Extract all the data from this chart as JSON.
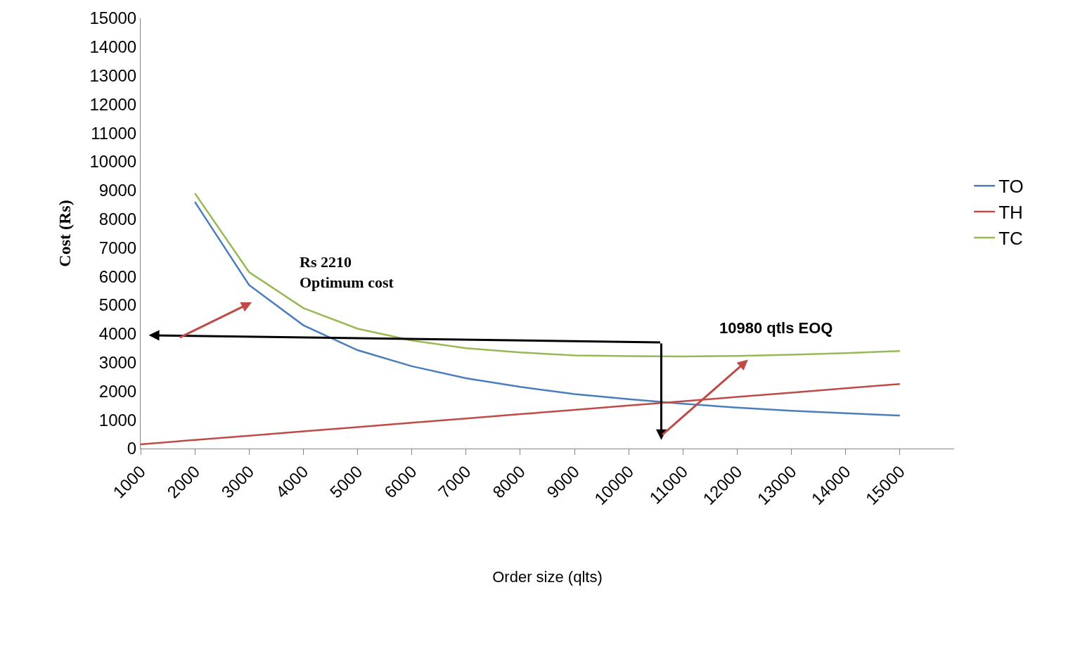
{
  "chart_data": {
    "type": "line",
    "xlabel": "Order size (qlts)",
    "ylabel": "Cost (Rs)",
    "x": [
      1000,
      2000,
      3000,
      4000,
      5000,
      6000,
      7000,
      8000,
      9000,
      10000,
      11000,
      12000,
      13000,
      14000,
      15000
    ],
    "xlim": [
      1000,
      16000
    ],
    "xticks": [
      1000,
      2000,
      3000,
      4000,
      5000,
      6000,
      7000,
      8000,
      9000,
      10000,
      11000,
      12000,
      13000,
      14000,
      15000
    ],
    "ylim": [
      0,
      15000
    ],
    "yticks": [
      0,
      1000,
      2000,
      3000,
      4000,
      5000,
      6000,
      7000,
      8000,
      9000,
      10000,
      11000,
      12000,
      13000,
      14000,
      15000
    ],
    "series": [
      {
        "name": "TO",
        "color": "#4a7ebb",
        "values": [
          null,
          8600,
          5700,
          4300,
          3430,
          2870,
          2450,
          2150,
          1900,
          1720,
          1560,
          1430,
          1320,
          1230,
          1150
        ]
      },
      {
        "name": "TH",
        "color": "#be4b48",
        "values": [
          150,
          300,
          450,
          600,
          750,
          900,
          1050,
          1200,
          1350,
          1500,
          1650,
          1800,
          1950,
          2100,
          2250
        ]
      },
      {
        "name": "TC",
        "color": "#98b954",
        "values": [
          null,
          8900,
          6150,
          4900,
          4180,
          3770,
          3500,
          3350,
          3250,
          3220,
          3210,
          3230,
          3270,
          3330,
          3400
        ]
      }
    ],
    "annotations": [
      "Rs 2210\nOptimum cost",
      "10980 qtls EOQ"
    ],
    "legend": "right",
    "marker": "none",
    "line_style": "solid"
  }
}
